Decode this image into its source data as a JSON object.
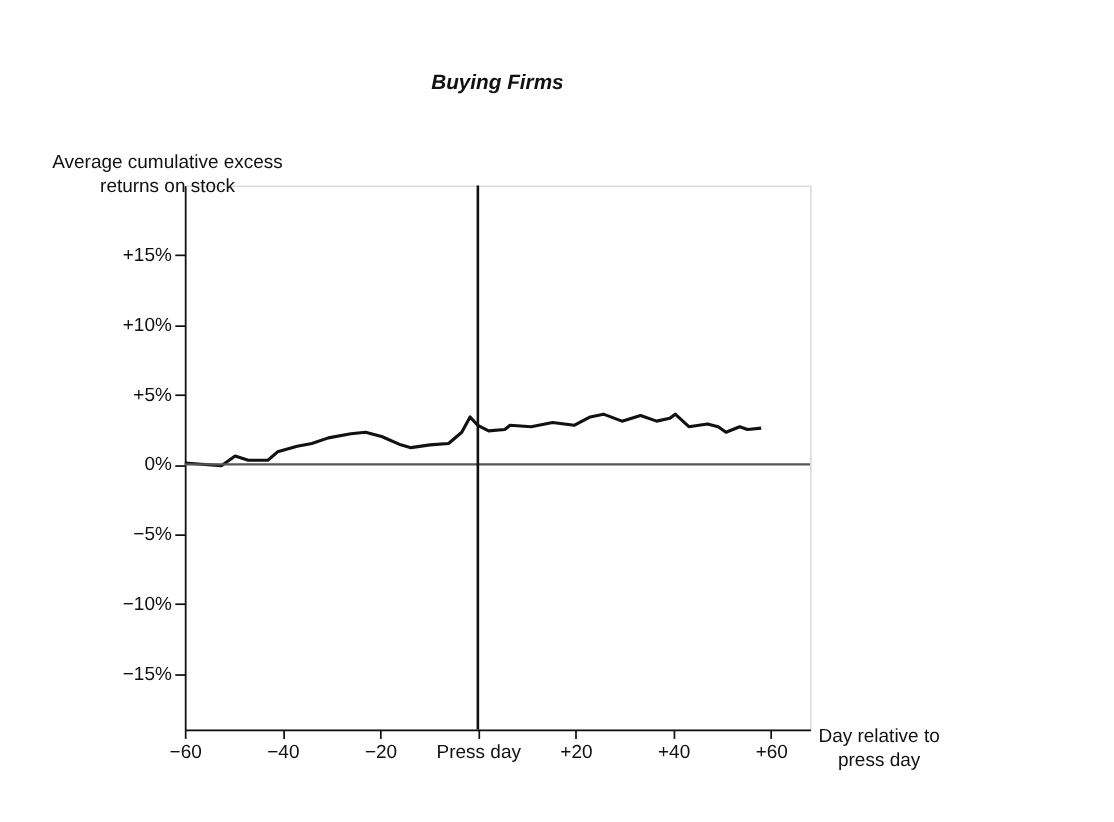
{
  "chart_data": {
    "type": "line",
    "title": "Buying Firms",
    "ylabel": "Average cumulative excess returns on stock",
    "xlabel": "Day relative to press day",
    "x": [
      -60,
      -52.5,
      -49.7,
      -47,
      -43,
      -41,
      -37,
      -34,
      -30.6,
      -26,
      -23,
      -19.7,
      -15.8,
      -13.7,
      -9.8,
      -6,
      -3.3,
      -1.6,
      0,
      2.2,
      5.5,
      6.6,
      10.9,
      15.3,
      19.7,
      23,
      25.7,
      29.5,
      33.3,
      36.6,
      39.3,
      40.4,
      43.2,
      47,
      49.2,
      50.8,
      53.6,
      55.2,
      58
    ],
    "series": [
      {
        "color": "#111111",
        "values": [
          0.1,
          -0.1,
          0.6,
          0.3,
          0.3,
          0.9,
          1.3,
          1.5,
          1.9,
          2.2,
          2.3,
          2.0,
          1.4,
          1.2,
          1.4,
          1.5,
          2.3,
          3.4,
          2.8,
          2.4,
          2.5,
          2.8,
          2.7,
          3.0,
          2.8,
          3.4,
          3.6,
          3.1,
          3.5,
          3.1,
          3.3,
          3.6,
          2.7,
          2.9,
          2.7,
          2.3,
          2.7,
          2.5,
          2.6
        ]
      }
    ],
    "xlim": [
      -60,
      68
    ],
    "ylim": [
      -19,
      20
    ],
    "xticks": [
      {
        "value": -60,
        "label": "−60"
      },
      {
        "value": -40,
        "label": "−40"
      },
      {
        "value": -20,
        "label": "−20"
      },
      {
        "value": 0,
        "label": "Press day"
      },
      {
        "value": 20,
        "label": "+20"
      },
      {
        "value": 40,
        "label": "+40"
      },
      {
        "value": 60,
        "label": "+60"
      }
    ],
    "yticks": [
      {
        "value": -15,
        "label": "−15%"
      },
      {
        "value": -10,
        "label": "−10%"
      },
      {
        "value": -5,
        "label": "−5%"
      },
      {
        "value": 0,
        "label": "0%"
      },
      {
        "value": 5,
        "label": "+5%"
      },
      {
        "value": 10,
        "label": "+10%"
      },
      {
        "value": 15,
        "label": "+15%"
      }
    ],
    "ref_lines": [
      {
        "axis": "y",
        "value": 0,
        "label": null,
        "color": "#555555"
      },
      {
        "axis": "x",
        "value": 0,
        "label": null,
        "color": "#111111"
      }
    ],
    "grid": false,
    "line_style": "solid",
    "marker": "none"
  }
}
